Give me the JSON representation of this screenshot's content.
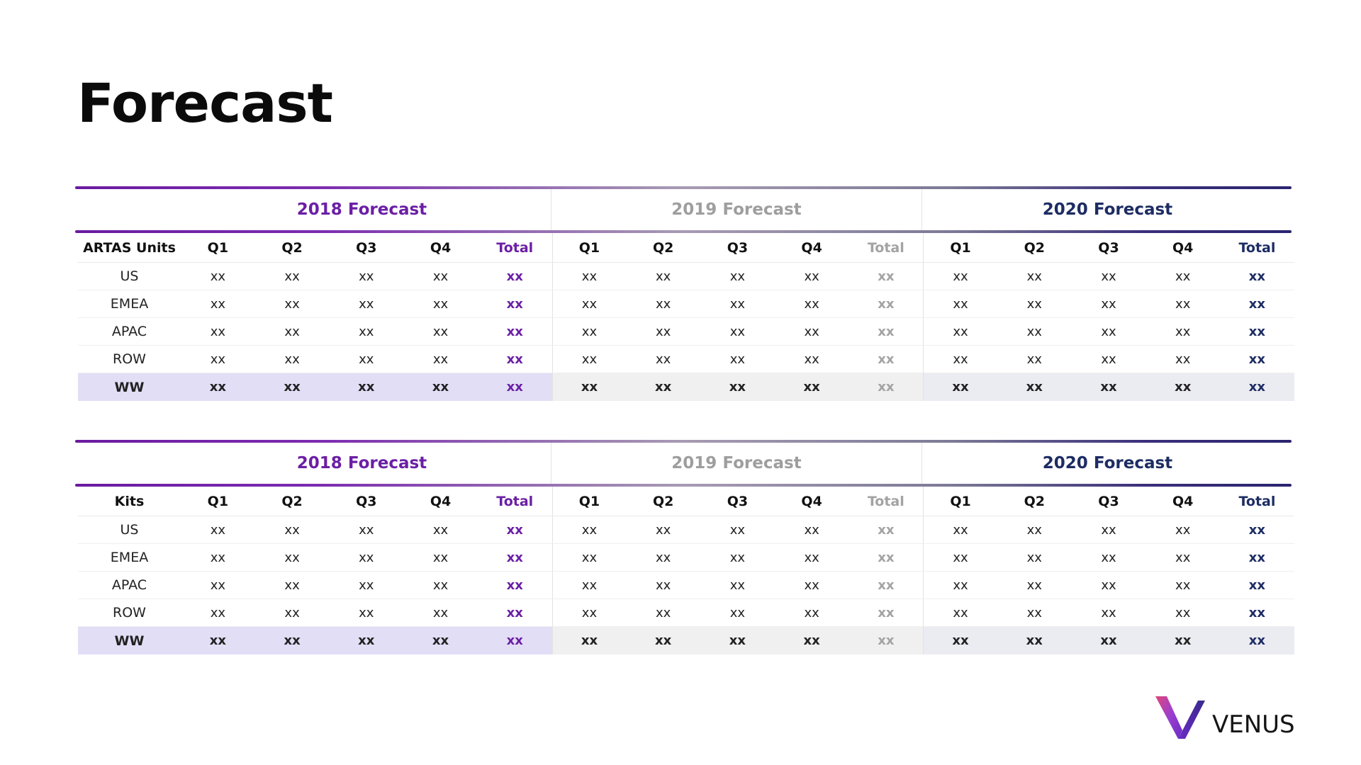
{
  "title": "Forecast",
  "tables": [
    {
      "corner_label": "ARTAS Units",
      "groups": [
        "2018 Forecast",
        "2019 Forecast",
        "2020 Forecast"
      ],
      "quarter_headers": [
        "Q1",
        "Q2",
        "Q3",
        "Q4",
        "Total"
      ],
      "rows": [
        {
          "label": "US",
          "values": [
            "xx",
            "xx",
            "xx",
            "xx",
            "xx",
            "xx",
            "xx",
            "xx",
            "xx",
            "xx",
            "xx",
            "xx",
            "xx",
            "xx",
            "xx"
          ]
        },
        {
          "label": "EMEA",
          "values": [
            "xx",
            "xx",
            "xx",
            "xx",
            "xx",
            "xx",
            "xx",
            "xx",
            "xx",
            "xx",
            "xx",
            "xx",
            "xx",
            "xx",
            "xx"
          ]
        },
        {
          "label": "APAC",
          "values": [
            "xx",
            "xx",
            "xx",
            "xx",
            "xx",
            "xx",
            "xx",
            "xx",
            "xx",
            "xx",
            "xx",
            "xx",
            "xx",
            "xx",
            "xx"
          ]
        },
        {
          "label": "ROW",
          "values": [
            "xx",
            "xx",
            "xx",
            "xx",
            "xx",
            "xx",
            "xx",
            "xx",
            "xx",
            "xx",
            "xx",
            "xx",
            "xx",
            "xx",
            "xx"
          ]
        },
        {
          "label": "WW",
          "values": [
            "xx",
            "xx",
            "xx",
            "xx",
            "xx",
            "xx",
            "xx",
            "xx",
            "xx",
            "xx",
            "xx",
            "xx",
            "xx",
            "xx",
            "xx"
          ]
        }
      ]
    },
    {
      "corner_label": "Kits",
      "groups": [
        "2018 Forecast",
        "2019 Forecast",
        "2020 Forecast"
      ],
      "quarter_headers": [
        "Q1",
        "Q2",
        "Q3",
        "Q4",
        "Total"
      ],
      "rows": [
        {
          "label": "US",
          "values": [
            "xx",
            "xx",
            "xx",
            "xx",
            "xx",
            "xx",
            "xx",
            "xx",
            "xx",
            "xx",
            "xx",
            "xx",
            "xx",
            "xx",
            "xx"
          ]
        },
        {
          "label": "EMEA",
          "values": [
            "xx",
            "xx",
            "xx",
            "xx",
            "xx",
            "xx",
            "xx",
            "xx",
            "xx",
            "xx",
            "xx",
            "xx",
            "xx",
            "xx",
            "xx"
          ]
        },
        {
          "label": "APAC",
          "values": [
            "xx",
            "xx",
            "xx",
            "xx",
            "xx",
            "xx",
            "xx",
            "xx",
            "xx",
            "xx",
            "xx",
            "xx",
            "xx",
            "xx",
            "xx"
          ]
        },
        {
          "label": "ROW",
          "values": [
            "xx",
            "xx",
            "xx",
            "xx",
            "xx",
            "xx",
            "xx",
            "xx",
            "xx",
            "xx",
            "xx",
            "xx",
            "xx",
            "xx",
            "xx"
          ]
        },
        {
          "label": "WW",
          "values": [
            "xx",
            "xx",
            "xx",
            "xx",
            "xx",
            "xx",
            "xx",
            "xx",
            "xx",
            "xx",
            "xx",
            "xx",
            "xx",
            "xx",
            "xx"
          ]
        }
      ]
    }
  ],
  "colors": {
    "year_2018": "#6b1fa5",
    "year_2019": "#a3a3a3",
    "year_2020": "#1d2c63",
    "ww_bg_2018": "#e2def6",
    "ww_bg_2019": "#f0f0f1",
    "ww_bg_2020": "#ebebf2"
  },
  "logo": {
    "text": "VENUS",
    "icon": "venus-v-logo-icon"
  }
}
